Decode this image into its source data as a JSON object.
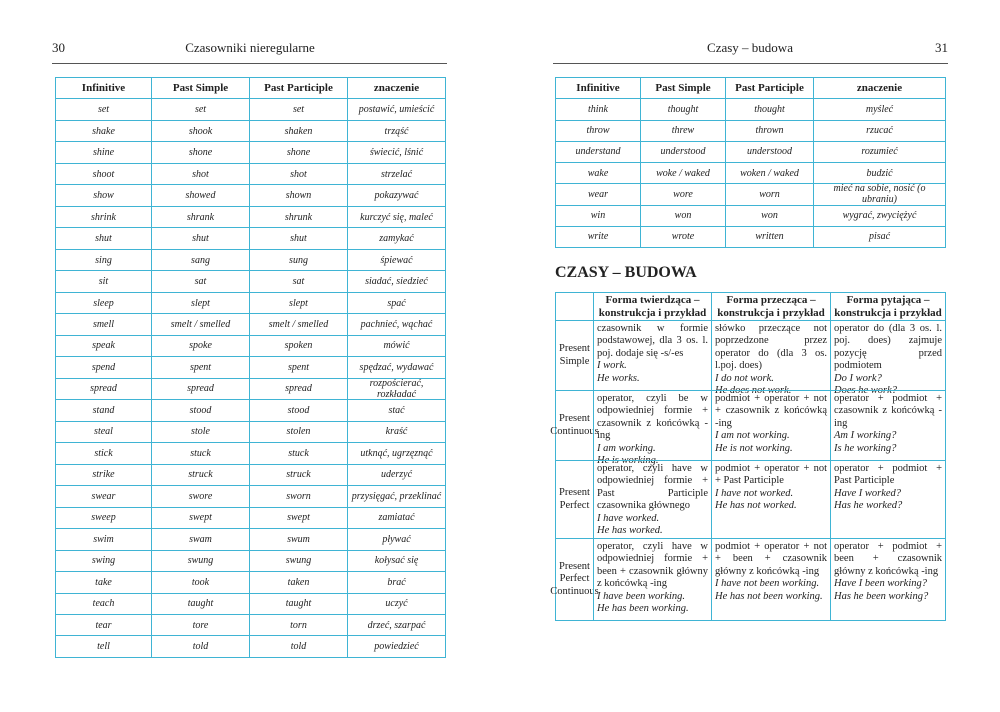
{
  "left": {
    "page_number": "30",
    "header": "Czasowniki nieregularne",
    "table": {
      "columns": [
        "Infinitive",
        "Past Simple",
        "Past Participle",
        "znaczenie"
      ],
      "rows": [
        [
          "set",
          "set",
          "set",
          "postawić, umieścić"
        ],
        [
          "shake",
          "shook",
          "shaken",
          "trząść"
        ],
        [
          "shine",
          "shone",
          "shone",
          "świecić, lśnić"
        ],
        [
          "shoot",
          "shot",
          "shot",
          "strzelać"
        ],
        [
          "show",
          "showed",
          "shown",
          "pokazywać"
        ],
        [
          "shrink",
          "shrank",
          "shrunk",
          "kurczyć się, maleć"
        ],
        [
          "shut",
          "shut",
          "shut",
          "zamykać"
        ],
        [
          "sing",
          "sang",
          "sung",
          "śpiewać"
        ],
        [
          "sit",
          "sat",
          "sat",
          "siadać, siedzieć"
        ],
        [
          "sleep",
          "slept",
          "slept",
          "spać"
        ],
        [
          "smell",
          "smelt / smelled",
          "smelt / smelled",
          "pachnieć, wąchać"
        ],
        [
          "speak",
          "spoke",
          "spoken",
          "mówić"
        ],
        [
          "spend",
          "spent",
          "spent",
          "spędzać, wydawać"
        ],
        [
          "spread",
          "spread",
          "spread",
          "rozpościerać, rozkładać"
        ],
        [
          "stand",
          "stood",
          "stood",
          "stać"
        ],
        [
          "steal",
          "stole",
          "stolen",
          "kraść"
        ],
        [
          "stick",
          "stuck",
          "stuck",
          "utknąć, ugrzęznąć"
        ],
        [
          "strike",
          "struck",
          "struck",
          "uderzyć"
        ],
        [
          "swear",
          "swore",
          "sworn",
          "przysięgać, przeklinać"
        ],
        [
          "sweep",
          "swept",
          "swept",
          "zamiatać"
        ],
        [
          "swim",
          "swam",
          "swum",
          "pływać"
        ],
        [
          "swing",
          "swung",
          "swung",
          "kołysać się"
        ],
        [
          "take",
          "took",
          "taken",
          "brać"
        ],
        [
          "teach",
          "taught",
          "taught",
          "uczyć"
        ],
        [
          "tear",
          "tore",
          "torn",
          "drzeć, szarpać"
        ],
        [
          "tell",
          "told",
          "told",
          "powiedzieć"
        ]
      ]
    }
  },
  "right": {
    "header": "Czasy – budowa",
    "page_number": "31",
    "table": {
      "columns": [
        "Infinitive",
        "Past Simple",
        "Past Participle",
        "znaczenie"
      ],
      "rows": [
        [
          "think",
          "thought",
          "thought",
          "myśleć"
        ],
        [
          "throw",
          "threw",
          "thrown",
          "rzucać"
        ],
        [
          "understand",
          "understood",
          "understood",
          "rozumieć"
        ],
        [
          "wake",
          "woke / waked",
          "woken / waked",
          "budzić"
        ],
        [
          "wear",
          "wore",
          "worn",
          "mieć na sobie, nosić (o ubraniu)"
        ],
        [
          "win",
          "won",
          "won",
          "wygrać, zwyciężyć"
        ],
        [
          "write",
          "wrote",
          "written",
          "pisać"
        ]
      ]
    },
    "section_title": "CZASY – BUDOWA",
    "tenses": {
      "columns": [
        "Forma twierdząca – konstrukcja i przykład",
        "Forma przecząca – konstrukcja i przykład",
        "Forma pytająca – konstrukcja i przykład"
      ],
      "rows": [
        {
          "name": "Present Simple",
          "cells": [
            {
              "text": "czasownik w formie podstawowej, dla 3 os. l. poj. dodaje się -s/-es",
              "examples": [
                "I work.",
                "He works."
              ]
            },
            {
              "text": "słówko przeczące not poprzedzone przez operator do (dla 3 os. l.poj. does)",
              "examples": [
                "I do not work.",
                "He does not work."
              ]
            },
            {
              "text": "operator do (dla 3 os. l. poj. does) zajmuje pozycję przed podmiotem",
              "examples": [
                "Do I work?",
                "Does he work?"
              ]
            }
          ]
        },
        {
          "name": "Present Continuous",
          "cells": [
            {
              "text": "operator, czyli be w odpowiedniej formie + czasownik z końcówką -ing",
              "examples": [
                "I am working.",
                "He is working."
              ]
            },
            {
              "text": "podmiot + operator + not + czasownik z końcówką -ing",
              "examples": [
                "I am not working.",
                "He is not working."
              ]
            },
            {
              "text": "operator + podmiot + czasownik z końcówką -ing",
              "examples": [
                "Am I working?",
                "Is he working?"
              ]
            }
          ]
        },
        {
          "name": "Present Perfect",
          "cells": [
            {
              "text": "operator, czyli have w odpowiedniej formie + Past Participle czasownika głównego",
              "examples": [
                "I have worked.",
                "He has worked."
              ]
            },
            {
              "text": "podmiot + operator + not + Past Participle",
              "examples": [
                "I have not worked.",
                "He has not worked."
              ]
            },
            {
              "text": "operator + podmiot + Past Participle",
              "examples": [
                "Have I worked?",
                "Has he worked?"
              ]
            }
          ]
        },
        {
          "name": "Present Perfect Continuous",
          "cells": [
            {
              "text": "operator, czyli have w odpowiedniej formie + been + czasownik główny z końcówką -ing",
              "examples": [
                "I have been working.",
                "He has been working."
              ]
            },
            {
              "text": "podmiot + operator + not + been + czasownik główny z końcówką -ing",
              "examples": [
                "I have not been working.",
                "He has not been working."
              ]
            },
            {
              "text": "operator + podmiot + been + czasownik główny z końcówką -ing",
              "examples": [
                "Have I been working?",
                "Has he been working?"
              ]
            }
          ]
        }
      ]
    }
  }
}
